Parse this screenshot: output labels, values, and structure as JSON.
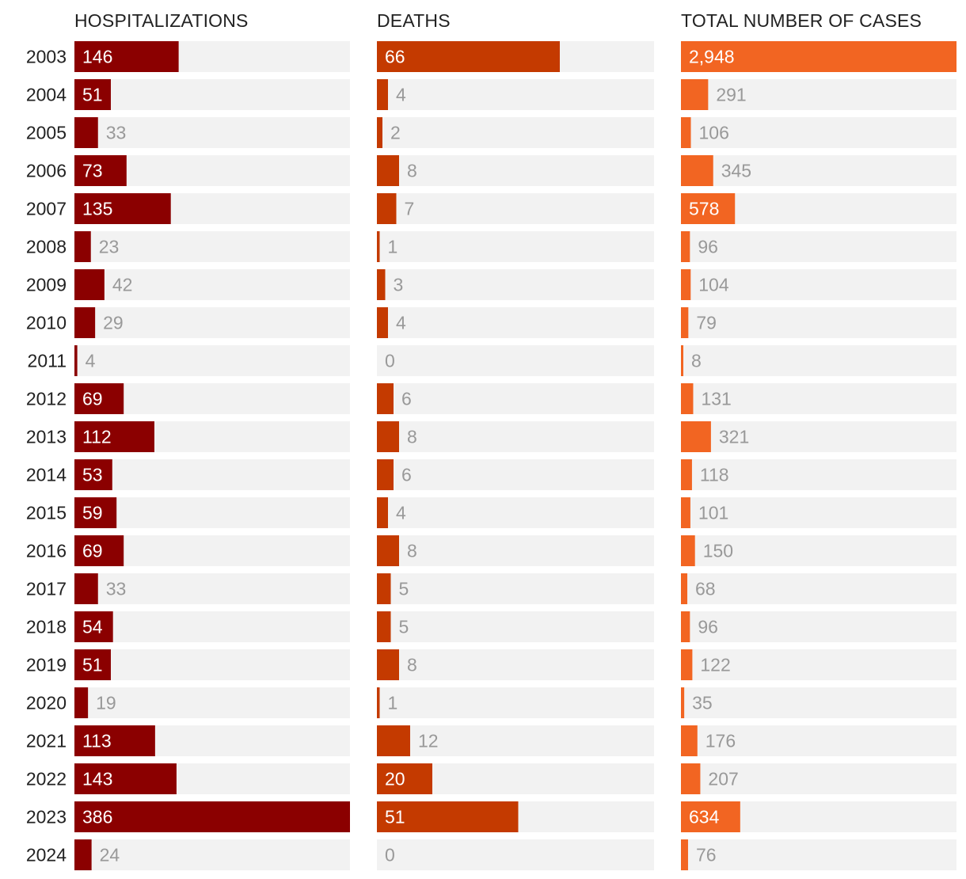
{
  "chart_data": {
    "type": "bar",
    "orientation": "horizontal",
    "categories": [
      "2003",
      "2004",
      "2005",
      "2006",
      "2007",
      "2008",
      "2009",
      "2010",
      "2011",
      "2012",
      "2013",
      "2014",
      "2015",
      "2016",
      "2017",
      "2018",
      "2019",
      "2020",
      "2021",
      "2022",
      "2023",
      "2024"
    ],
    "series": [
      {
        "name": "HOSPITALIZATIONS",
        "color": "#8b0000",
        "max": 386,
        "values": [
          146,
          51,
          33,
          73,
          135,
          23,
          42,
          29,
          4,
          69,
          112,
          53,
          59,
          69,
          33,
          54,
          51,
          19,
          113,
          143,
          386,
          24
        ],
        "labels": [
          "146",
          "51",
          "33",
          "73",
          "135",
          "23",
          "42",
          "29",
          "4",
          "69",
          "112",
          "53",
          "59",
          "69",
          "33",
          "54",
          "51",
          "19",
          "113",
          "143",
          "386",
          "24"
        ]
      },
      {
        "name": "DEATHS",
        "color": "#c43a00",
        "max": 100,
        "values": [
          66,
          4,
          2,
          8,
          7,
          1,
          3,
          4,
          0,
          6,
          8,
          6,
          4,
          8,
          5,
          5,
          8,
          1,
          12,
          20,
          51,
          0
        ],
        "labels": [
          "66",
          "4",
          "2",
          "8",
          "7",
          "1",
          "3",
          "4",
          "0",
          "6",
          "8",
          "6",
          "4",
          "8",
          "5",
          "5",
          "8",
          "1",
          "12",
          "20",
          "51",
          "0"
        ]
      },
      {
        "name": "TOTAL NUMBER OF CASES",
        "color": "#f26522",
        "max": 2948,
        "values": [
          2948,
          291,
          106,
          345,
          578,
          96,
          104,
          79,
          8,
          131,
          321,
          118,
          101,
          150,
          68,
          96,
          122,
          35,
          176,
          207,
          634,
          76
        ],
        "labels": [
          "2,948",
          "291",
          "106",
          "345",
          "578",
          "96",
          "104",
          "79",
          "8",
          "131",
          "321",
          "118",
          "101",
          "150",
          "68",
          "96",
          "122",
          "35",
          "176",
          "207",
          "634",
          "76"
        ]
      }
    ],
    "track_color": "#f2f2f2",
    "inside_label_threshold": 0.13
  }
}
